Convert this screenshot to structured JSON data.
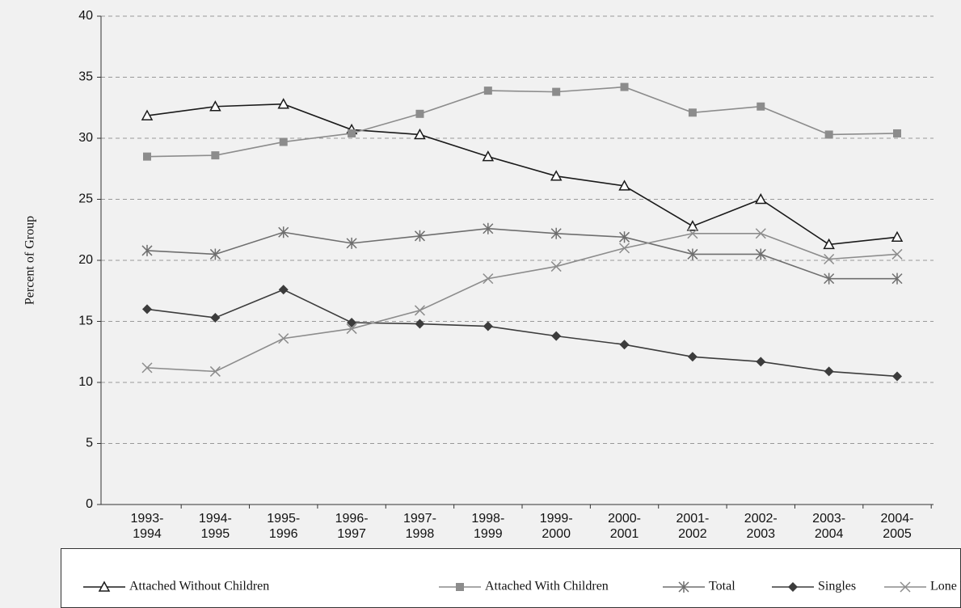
{
  "chart_data": {
    "type": "line",
    "y_label": "Percent of Group",
    "categories": [
      "1993-\n1994",
      "1994-\n1995",
      "1995-\n1996",
      "1996-\n1997",
      "1997-\n1998",
      "1998-\n1999",
      "1999-\n2000",
      "2000-\n2001",
      "2001-\n2002",
      "2002-\n2003",
      "2003-\n2004",
      "2004-\n2005"
    ],
    "ylim": [
      0,
      40
    ],
    "yticks": [
      0,
      5,
      10,
      15,
      20,
      25,
      30,
      35,
      40
    ],
    "grid": true,
    "legend": "bottom",
    "series": [
      {
        "name": "Attached Without Children",
        "color": "#1a1a1a",
        "marker": "triangle",
        "values": [
          31.85,
          32.6,
          32.8,
          30.7,
          30.3,
          28.5,
          26.9,
          26.1,
          22.8,
          25.0,
          21.3,
          21.9
        ]
      },
      {
        "name": "Attached With Children",
        "color": "#8c8c8c",
        "marker": "square",
        "values": [
          28.5,
          28.6,
          29.7,
          30.4,
          32.0,
          33.9,
          33.8,
          34.2,
          32.1,
          32.6,
          30.3,
          30.4
        ]
      },
      {
        "name": "Total",
        "color": "#6e6e6e",
        "marker": "asterisk",
        "values": [
          20.8,
          20.5,
          22.3,
          21.4,
          22.0,
          22.6,
          22.2,
          21.9,
          20.5,
          20.5,
          18.5,
          18.5
        ]
      },
      {
        "name": "Singles",
        "color": "#3c3c3c",
        "marker": "diamond",
        "values": [
          16.0,
          15.3,
          17.6,
          14.9,
          14.8,
          14.6,
          13.8,
          13.1,
          12.1,
          11.7,
          10.9,
          10.5
        ]
      },
      {
        "name": "Lone Parents",
        "color": "#8c8c8c",
        "marker": "x",
        "values": [
          11.2,
          10.9,
          13.6,
          14.4,
          15.9,
          18.5,
          19.5,
          21.0,
          22.2,
          22.2,
          20.1,
          20.5
        ]
      }
    ]
  }
}
